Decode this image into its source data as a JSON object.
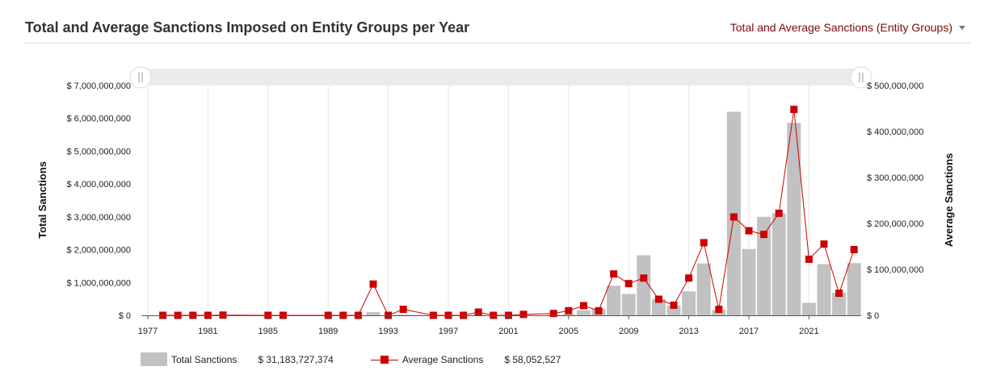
{
  "header": {
    "title": "Total and Average Sanctions Imposed on Entity Groups per Year",
    "view_selector": "Total and Average Sanctions (Entity Groups)"
  },
  "legend": {
    "bar_label": "Total Sanctions",
    "bar_total": "$ 31,183,727,374",
    "line_label": "Average Sanctions",
    "line_total": "$ 58,052,527"
  },
  "colors": {
    "bars": "#c1c1c1",
    "line": "#cc0000",
    "grid": "#e6e6e6",
    "navigator": "#ebebeb"
  },
  "chart_data": {
    "type": "bar",
    "combo": "bar + line on secondary axis",
    "ylabel": "Total Sanctions",
    "y2label": "Average Sanctions",
    "ylim": [
      0,
      7000000000
    ],
    "y2lim": [
      0,
      500000000
    ],
    "grid": true,
    "legend_position": "bottom",
    "yticks": [
      "$ 0",
      "$ 1,000,000,000",
      "$ 2,000,000,000",
      "$ 3,000,000,000",
      "$ 4,000,000,000",
      "$ 5,000,000,000",
      "$ 6,000,000,000",
      "$ 7,000,000,000"
    ],
    "y2ticks": [
      "$ 0",
      "$ 100,000,000",
      "$ 200,000,000",
      "$ 300,000,000",
      "$ 400,000,000",
      "$ 500,000,000"
    ],
    "xticks": [
      "1977",
      "1981",
      "1985",
      "1989",
      "1993",
      "1997",
      "2001",
      "2005",
      "2009",
      "2013",
      "2017",
      "2021"
    ],
    "series": [
      {
        "name": "Total Sanctions",
        "kind": "bar",
        "axis": "left",
        "points": [
          [
            1978,
            0
          ],
          [
            1979,
            0
          ],
          [
            1980,
            0
          ],
          [
            1981,
            0
          ],
          [
            1982,
            5000000
          ],
          [
            1985,
            0
          ],
          [
            1986,
            0
          ],
          [
            1989,
            0
          ],
          [
            1990,
            0
          ],
          [
            1991,
            0
          ],
          [
            1992,
            100000000
          ],
          [
            1993,
            0
          ],
          [
            1994,
            20000000
          ],
          [
            1996,
            0
          ],
          [
            1997,
            0
          ],
          [
            1998,
            0
          ],
          [
            1999,
            10000000
          ],
          [
            2000,
            0
          ],
          [
            2001,
            0
          ],
          [
            2002,
            10000000
          ],
          [
            2004,
            20000000
          ],
          [
            2005,
            30000000
          ],
          [
            2006,
            150000000
          ],
          [
            2007,
            200000000
          ],
          [
            2008,
            900000000
          ],
          [
            2009,
            650000000
          ],
          [
            2010,
            1830000000
          ],
          [
            2011,
            500000000
          ],
          [
            2012,
            300000000
          ],
          [
            2013,
            730000000
          ],
          [
            2014,
            1580000000
          ],
          [
            2015,
            160000000
          ],
          [
            2016,
            6200000000
          ],
          [
            2017,
            2020000000
          ],
          [
            2018,
            3000000000
          ],
          [
            2019,
            3110000000
          ],
          [
            2020,
            5860000000
          ],
          [
            2021,
            380000000
          ],
          [
            2022,
            1560000000
          ],
          [
            2023,
            690000000
          ],
          [
            2024,
            1590000000
          ]
        ]
      },
      {
        "name": "Average Sanctions",
        "kind": "line",
        "axis": "right",
        "points": [
          [
            1978,
            0
          ],
          [
            1979,
            0
          ],
          [
            1980,
            0
          ],
          [
            1981,
            0
          ],
          [
            1982,
            500000
          ],
          [
            1985,
            0
          ],
          [
            1986,
            0
          ],
          [
            1989,
            0
          ],
          [
            1990,
            0
          ],
          [
            1991,
            0
          ],
          [
            1992,
            68000000
          ],
          [
            1993,
            0
          ],
          [
            1994,
            13000000
          ],
          [
            1996,
            0
          ],
          [
            1997,
            0
          ],
          [
            1998,
            0
          ],
          [
            1999,
            7000000
          ],
          [
            2000,
            0
          ],
          [
            2001,
            0
          ],
          [
            2002,
            2000000
          ],
          [
            2004,
            4000000
          ],
          [
            2005,
            10000000
          ],
          [
            2006,
            21000000
          ],
          [
            2007,
            10000000
          ],
          [
            2008,
            90000000
          ],
          [
            2009,
            69000000
          ],
          [
            2010,
            81000000
          ],
          [
            2011,
            35000000
          ],
          [
            2012,
            22000000
          ],
          [
            2013,
            81000000
          ],
          [
            2014,
            158000000
          ],
          [
            2015,
            13000000
          ],
          [
            2016,
            214000000
          ],
          [
            2017,
            184000000
          ],
          [
            2018,
            176000000
          ],
          [
            2019,
            222000000
          ],
          [
            2020,
            448000000
          ],
          [
            2021,
            122000000
          ],
          [
            2022,
            155000000
          ],
          [
            2023,
            48000000
          ],
          [
            2024,
            143000000
          ]
        ]
      }
    ]
  }
}
